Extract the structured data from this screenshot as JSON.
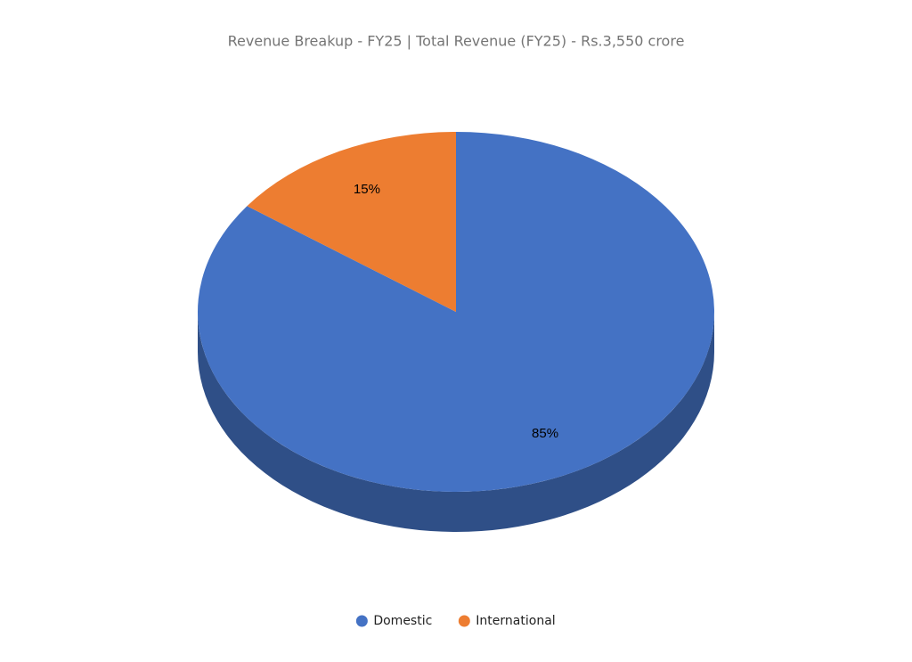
{
  "chart_data": {
    "type": "pie",
    "title": "Revenue Breakup - FY25 | Total Revenue (FY25) - Rs.3,550 crore",
    "categories": [
      "Domestic",
      "International"
    ],
    "values": [
      85,
      15
    ],
    "value_labels": [
      "85%",
      "15%"
    ],
    "colors": [
      "#4472c4",
      "#ed7d31"
    ],
    "legend": "bottom"
  }
}
